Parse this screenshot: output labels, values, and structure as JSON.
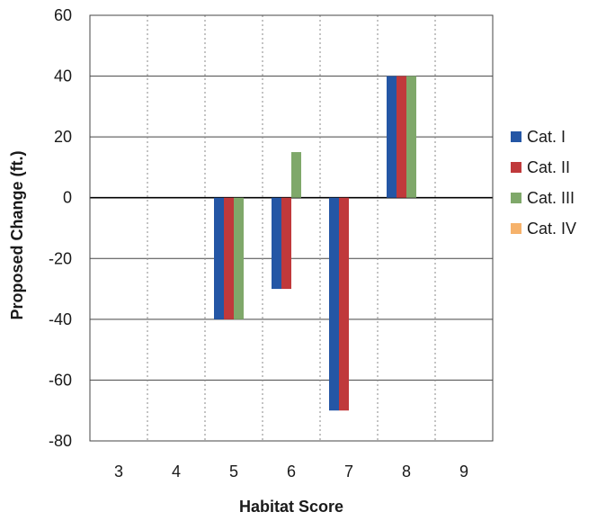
{
  "chart_data": {
    "type": "bar",
    "title": "",
    "xlabel": "Habitat Score",
    "ylabel": "Proposed Change (ft.)",
    "categories": [
      "3",
      "4",
      "5",
      "6",
      "7",
      "8",
      "9"
    ],
    "ylim": [
      -80,
      60
    ],
    "yticks": [
      60,
      40,
      20,
      0,
      -20,
      -40,
      -60,
      -80
    ],
    "grid": true,
    "legend_position": "right",
    "series": [
      {
        "name": "Cat. I",
        "color": "#2456a5",
        "values": [
          null,
          null,
          -40,
          -30,
          -70,
          40,
          null
        ]
      },
      {
        "name": "Cat. II",
        "color": "#c0393b",
        "values": [
          null,
          null,
          -40,
          -30,
          -70,
          40,
          null
        ]
      },
      {
        "name": "Cat. III",
        "color": "#7fa86a",
        "values": [
          null,
          null,
          -40,
          15,
          null,
          40,
          null
        ]
      },
      {
        "name": "Cat. IV",
        "color": "#f6b26b",
        "values": [
          null,
          null,
          null,
          null,
          null,
          null,
          null
        ]
      }
    ]
  }
}
